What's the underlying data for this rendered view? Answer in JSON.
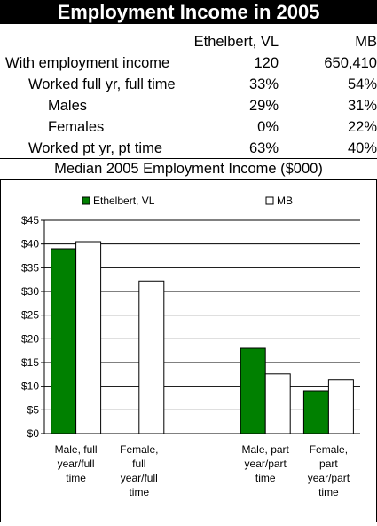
{
  "header": {
    "title": "Employment Income in 2005"
  },
  "table": {
    "columns": [
      "Ethelbert, VL",
      "MB"
    ],
    "rows": [
      {
        "label": "With employment income",
        "values": [
          "120",
          "650,410"
        ],
        "indent": 0
      },
      {
        "label": "Worked full yr, full time",
        "values": [
          "33%",
          "54%"
        ],
        "indent": 1
      },
      {
        "label": "Males",
        "values": [
          "29%",
          "31%"
        ],
        "indent": 2
      },
      {
        "label": "Females",
        "values": [
          "0%",
          "22%"
        ],
        "indent": 2
      },
      {
        "label": "Worked pt yr, pt time",
        "values": [
          "63%",
          "40%"
        ],
        "indent": 1
      }
    ]
  },
  "chart_data": {
    "type": "bar",
    "title": "Median 2005 Employment Income ($000)",
    "categories": [
      [
        "Male, full",
        "year/full",
        "time"
      ],
      [
        "Female,",
        "full",
        "year/full",
        "time"
      ],
      [],
      [
        "Male, part",
        "year/part",
        "time"
      ],
      [
        "Female,",
        "part",
        "year/part",
        "time"
      ]
    ],
    "series": [
      {
        "name": "Ethelbert, VL",
        "color": "#008000",
        "values": [
          39,
          0,
          null,
          18,
          9
        ]
      },
      {
        "name": "MB",
        "color": "#ffffff",
        "values": [
          40.5,
          32.2,
          null,
          12.6,
          11.3
        ]
      }
    ],
    "ylim": [
      0,
      45
    ],
    "yticks": [
      "$0",
      "$5",
      "$10",
      "$15",
      "$20",
      "$25",
      "$30",
      "$35",
      "$40",
      "$45"
    ],
    "grid": true,
    "legend": "top"
  }
}
